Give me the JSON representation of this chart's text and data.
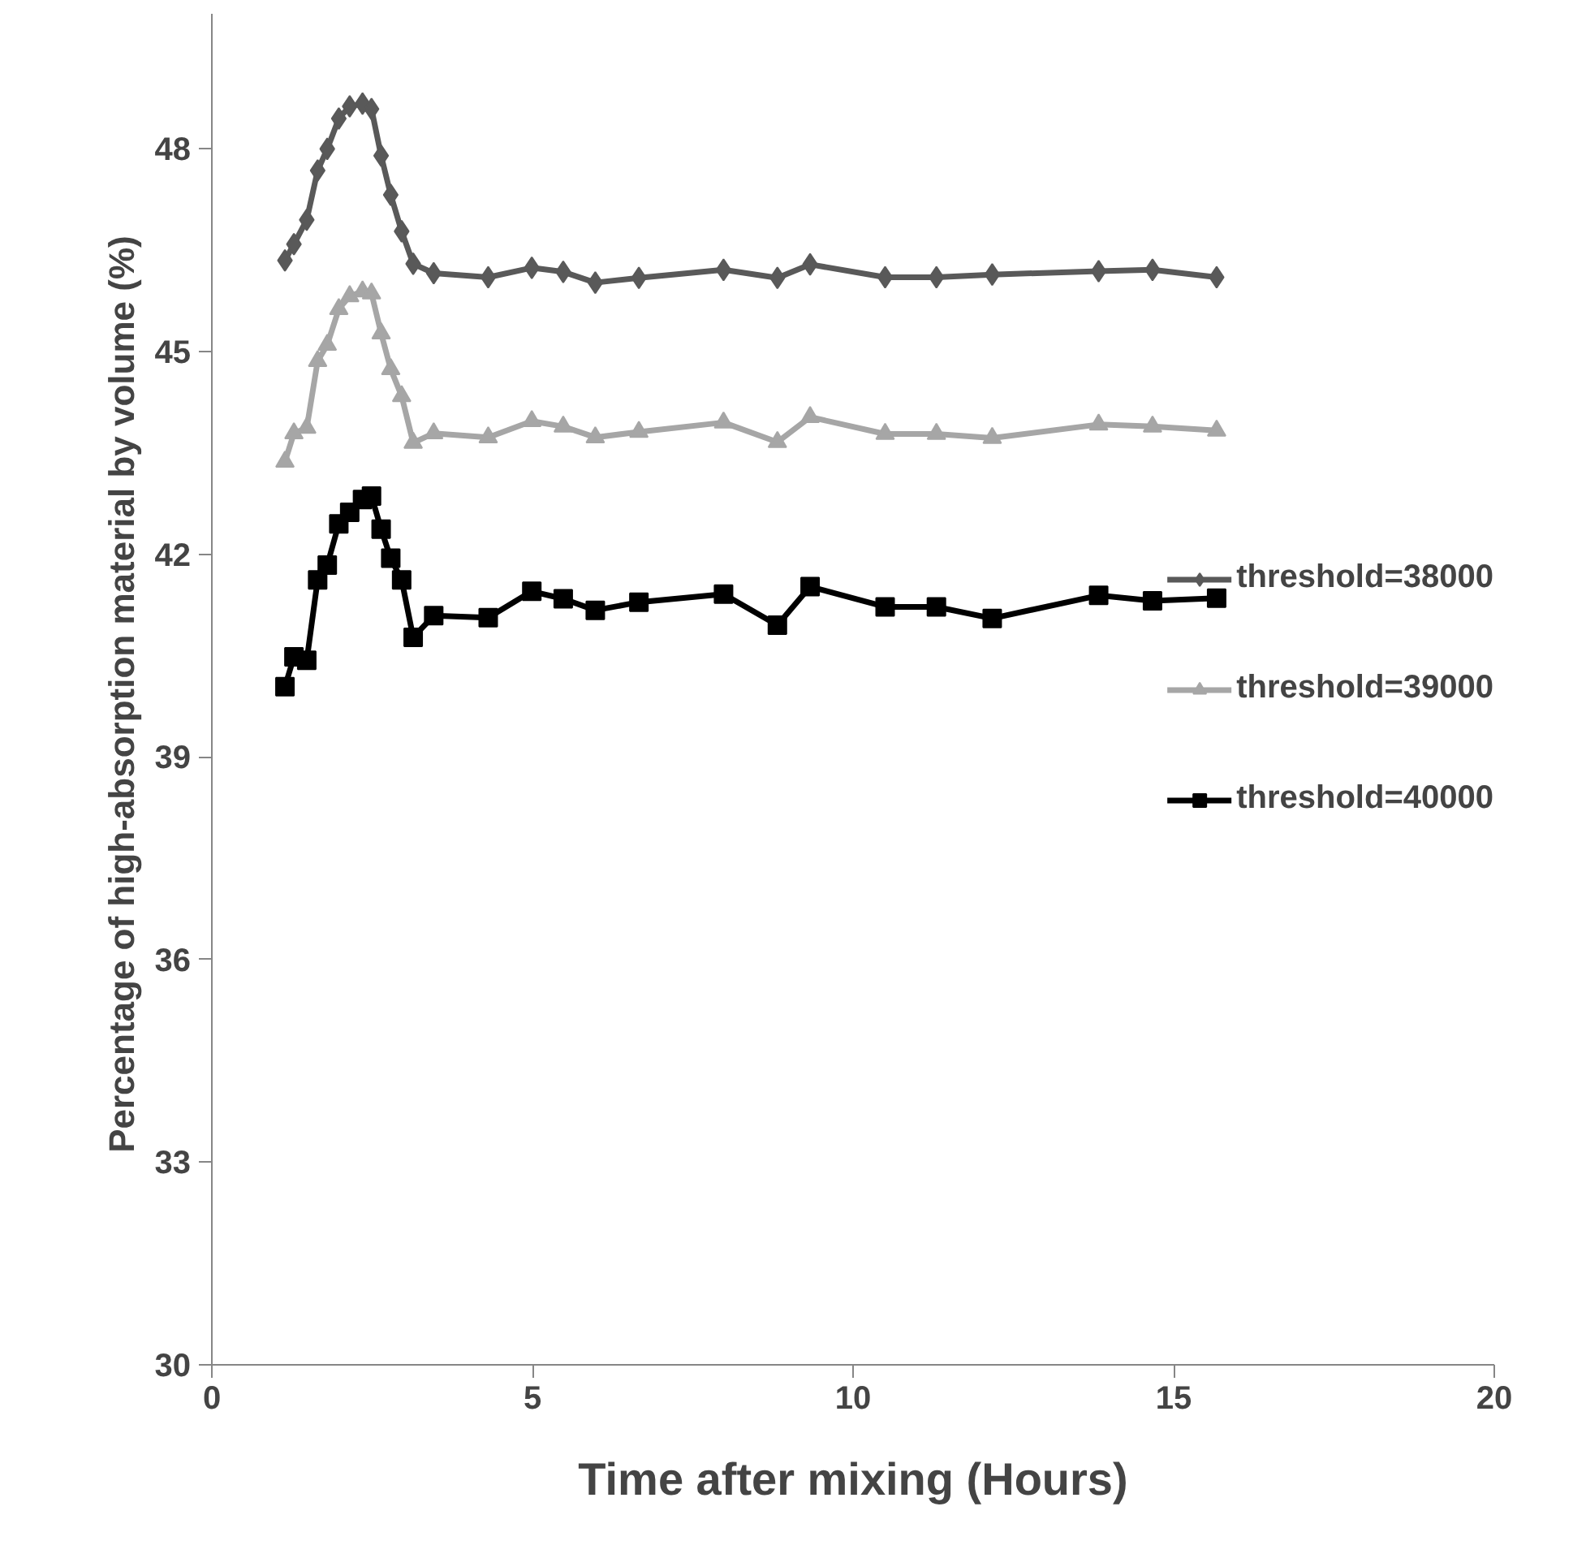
{
  "chart_data": {
    "type": "line",
    "xlabel": "Time after mixing (Hours)",
    "ylabel": "Percentage of high-absorption  material by volume (%)",
    "x": [
      1.14,
      1.28,
      1.48,
      1.65,
      1.8,
      1.98,
      2.15,
      2.35,
      2.49,
      2.64,
      2.79,
      2.96,
      3.14,
      3.46,
      4.31,
      4.99,
      5.48,
      5.98,
      6.66,
      7.98,
      8.82,
      9.33,
      10.5,
      11.3,
      12.17,
      13.83,
      14.67,
      15.67
    ],
    "series": [
      {
        "name": "threshold=38000",
        "color": "#595959",
        "marker": "diamond",
        "values": [
          46.35,
          46.59,
          46.95,
          47.68,
          48.0,
          48.45,
          48.63,
          48.67,
          48.59,
          47.9,
          47.32,
          46.78,
          46.3,
          46.16,
          46.1,
          46.24,
          46.18,
          46.02,
          46.09,
          46.21,
          46.09,
          46.29,
          46.1,
          46.1,
          46.14,
          46.19,
          46.21,
          46.1
        ]
      },
      {
        "name": "threshold=39000",
        "color": "#a6a6a6",
        "marker": "triangle",
        "values": [
          43.37,
          43.79,
          43.87,
          44.86,
          45.1,
          45.63,
          45.82,
          45.89,
          45.86,
          45.27,
          44.74,
          44.34,
          43.65,
          43.79,
          43.73,
          43.97,
          43.89,
          43.73,
          43.81,
          43.95,
          43.66,
          44.03,
          43.78,
          43.78,
          43.72,
          43.92,
          43.89,
          43.83
        ]
      },
      {
        "name": "threshold=40000",
        "color": "#000000",
        "marker": "square",
        "values": [
          40.04,
          40.48,
          40.43,
          41.62,
          41.84,
          42.45,
          42.62,
          42.81,
          42.86,
          42.37,
          41.94,
          41.62,
          40.77,
          41.09,
          41.06,
          41.45,
          41.34,
          41.17,
          41.29,
          41.41,
          40.95,
          41.52,
          41.22,
          41.22,
          41.05,
          41.39,
          41.31,
          41.35
        ]
      }
    ],
    "xlim": [
      0,
      20
    ],
    "ylim": [
      30,
      50
    ],
    "xticks": [
      0,
      5,
      10,
      15,
      20
    ],
    "yticks": [
      30,
      33,
      36,
      39,
      42,
      45,
      48
    ],
    "grid": false,
    "legend": "right",
    "line_style": "solid"
  }
}
